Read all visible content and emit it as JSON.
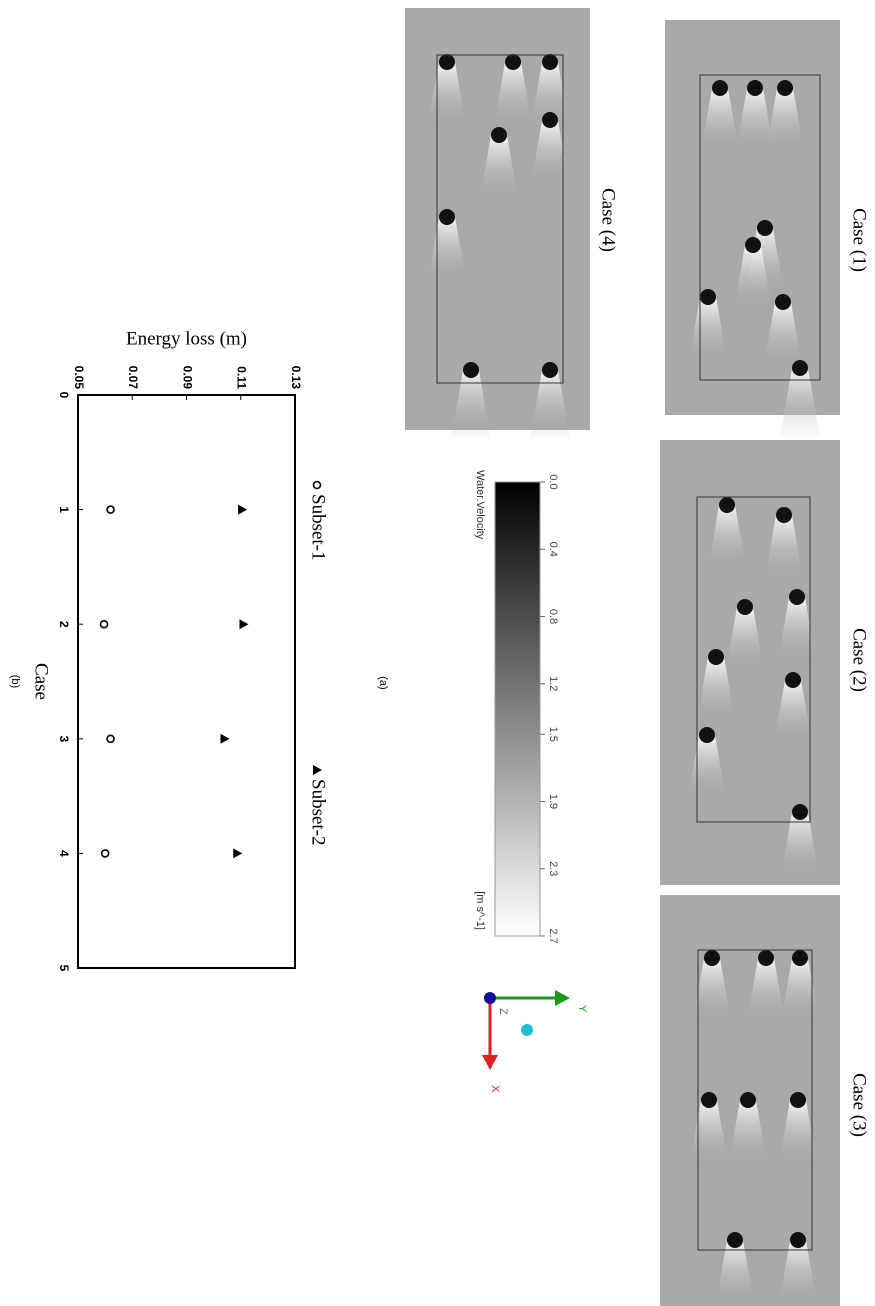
{
  "figure": {
    "panels": [
      "Case (1)",
      "Case (2)",
      "Case (3)",
      "Case (4)"
    ],
    "colorbar": {
      "title": "Water.Velocity",
      "unit": "[m s^-1]",
      "lim": [
        0,
        2.7
      ],
      "ticks": [
        {
          "value": 0,
          "label": "0.0"
        },
        0.4,
        0.8,
        1.2,
        1.5,
        1.9,
        2.3,
        2.7
      ]
    },
    "triad": {
      "x": "X",
      "y": "Y",
      "z": "Z"
    },
    "caption_a": "(a)",
    "caption_b": "(b)"
  },
  "chart_data": {
    "type": "scatter",
    "xlabel": "Case",
    "ylabel": "Energy loss (m)",
    "x": [
      1,
      2,
      3,
      4
    ],
    "series": [
      {
        "name": "Subset-1",
        "marker": "circle",
        "color": "#000000",
        "values": [
          0.062,
          0.0596,
          0.062,
          0.06
        ]
      },
      {
        "name": "Subset-2",
        "marker": "triangle",
        "color": "#000000",
        "values": [
          0.1105,
          0.111,
          0.104,
          0.1087
        ]
      }
    ],
    "xlim": [
      0,
      5
    ],
    "xticks": [
      0,
      1,
      2,
      3,
      4,
      5
    ],
    "ylim": [
      0.05,
      0.13
    ],
    "yticks": [
      0.05,
      0.07,
      0.09,
      0.11,
      0.13
    ],
    "grid": false
  }
}
